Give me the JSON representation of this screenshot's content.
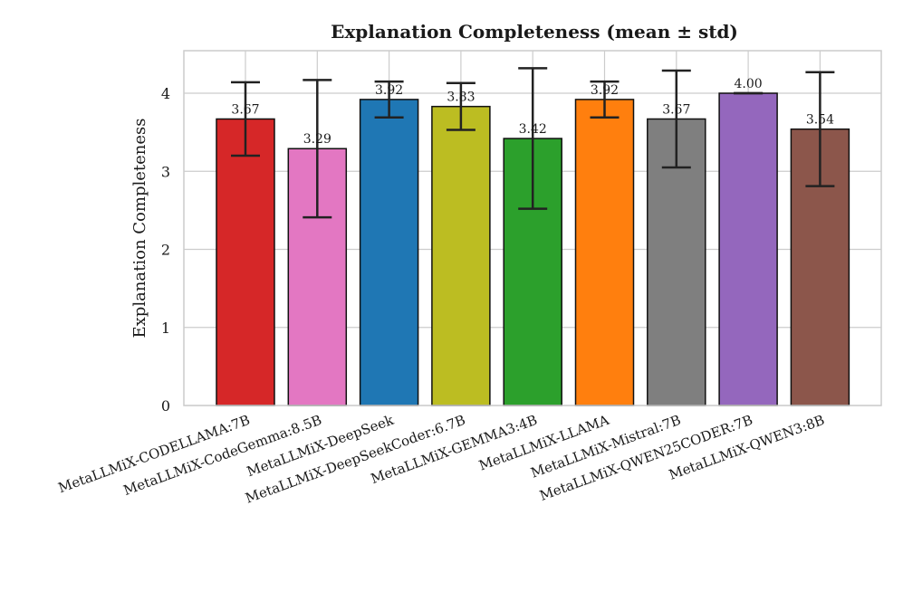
{
  "chart_data": {
    "type": "bar",
    "title": "Explanation Completeness (mean ± std)",
    "xlabel": "",
    "ylabel": "Explanation Completeness",
    "ylim": [
      0,
      4.5
    ],
    "yticks": [
      0,
      1,
      2,
      3,
      4
    ],
    "grid": true,
    "categories": [
      "MetaLLMiX-CODELLAMA:7B",
      "MetaLLMiX-CodeGemma:8.5B",
      "MetaLLMiX-DeepSeek",
      "MetaLLMiX-DeepSeekCoder:6.7B",
      "MetaLLMiX-GEMMA3:4B",
      "MetaLLMiX-LLAMA",
      "MetaLLMiX-Mistral:7B",
      "MetaLLMiX-QWEN25CODER:7B",
      "MetaLLMiX-QWEN3:8B"
    ],
    "values": [
      3.67,
      3.29,
      3.92,
      3.83,
      3.42,
      3.92,
      3.67,
      4.0,
      3.54
    ],
    "value_labels": [
      "3.67",
      "3.29",
      "3.92",
      "3.83",
      "3.42",
      "3.92",
      "3.67",
      "4.00",
      "3.54"
    ],
    "std": [
      0.47,
      0.88,
      0.23,
      0.3,
      0.9,
      0.23,
      0.62,
      0.0,
      0.73
    ],
    "colors": [
      "#d62728",
      "#e377c2",
      "#1f77b4",
      "#bcbd22",
      "#2ca02c",
      "#ff7f0e",
      "#7f7f7f",
      "#9467bd",
      "#8c564b"
    ]
  }
}
